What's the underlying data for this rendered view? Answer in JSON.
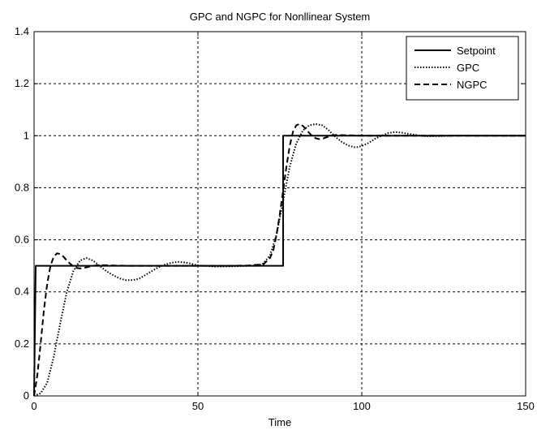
{
  "chart_data": {
    "type": "line",
    "title": "GPC and NGPC for Nonllinear System",
    "xlabel": "Time",
    "ylabel": "",
    "xlim": [
      0,
      150
    ],
    "ylim": [
      0,
      1.4
    ],
    "xticks": [
      0,
      50,
      100,
      150
    ],
    "yticks": [
      0,
      0.2,
      0.4,
      0.6,
      0.8,
      1,
      1.2,
      1.4
    ],
    "xtick_labels": [
      "0",
      "50",
      "100",
      "150"
    ],
    "ytick_labels": [
      "0",
      "0.2",
      "0.4",
      "0.6",
      "0.8",
      "1",
      "1.2",
      "1.4"
    ],
    "grid": true,
    "legend_position": "top-right",
    "series": [
      {
        "name": "Setpoint",
        "style": "solid",
        "color": "#000000",
        "x": [
          0,
          0.5,
          76,
          76,
          150
        ],
        "y": [
          0,
          0.5,
          0.5,
          1.0,
          1.0
        ]
      },
      {
        "name": "GPC",
        "style": "dotted",
        "color": "#000000",
        "x": [
          0,
          2,
          4,
          6,
          8,
          10,
          12,
          14,
          16,
          18,
          20,
          22,
          24,
          26,
          28,
          30,
          32,
          34,
          36,
          38,
          40,
          42,
          44,
          46,
          48,
          50,
          55,
          60,
          65,
          68,
          70,
          72,
          74,
          76,
          78,
          80,
          82,
          84,
          86,
          88,
          90,
          92,
          94,
          96,
          98,
          100,
          102,
          104,
          106,
          108,
          110,
          112,
          114,
          116,
          118,
          120,
          125,
          130,
          135,
          140,
          145,
          150
        ],
        "y": [
          0,
          0.01,
          0.05,
          0.15,
          0.28,
          0.4,
          0.48,
          0.52,
          0.53,
          0.52,
          0.5,
          0.48,
          0.465,
          0.452,
          0.445,
          0.445,
          0.45,
          0.465,
          0.48,
          0.495,
          0.505,
          0.512,
          0.515,
          0.513,
          0.508,
          0.502,
          0.497,
          0.498,
          0.5,
          0.5,
          0.51,
          0.54,
          0.62,
          0.75,
          0.88,
          0.97,
          1.02,
          1.04,
          1.045,
          1.04,
          1.02,
          0.995,
          0.975,
          0.962,
          0.955,
          0.96,
          0.972,
          0.988,
          1.0,
          1.01,
          1.014,
          1.012,
          1.008,
          1.004,
          1.0,
          0.998,
          0.999,
          1.001,
          1.0,
          1.0,
          1.0,
          1.0
        ]
      },
      {
        "name": "NGPC",
        "style": "dashed",
        "color": "#000000",
        "x": [
          0,
          1,
          2,
          3,
          4,
          5,
          6,
          7,
          8,
          9,
          10,
          11,
          12,
          13,
          14,
          16,
          18,
          20,
          25,
          30,
          40,
          50,
          60,
          65,
          70,
          72,
          73,
          74,
          75,
          76,
          77,
          78,
          79,
          80,
          81,
          82,
          83,
          84,
          85,
          86,
          87,
          88,
          89,
          90,
          92,
          95,
          100,
          110,
          120,
          130,
          140,
          150
        ],
        "y": [
          0,
          0.08,
          0.2,
          0.33,
          0.43,
          0.5,
          0.535,
          0.548,
          0.545,
          0.535,
          0.52,
          0.508,
          0.498,
          0.492,
          0.49,
          0.494,
          0.5,
          0.503,
          0.501,
          0.5,
          0.5,
          0.5,
          0.5,
          0.501,
          0.506,
          0.53,
          0.56,
          0.62,
          0.7,
          0.79,
          0.88,
          0.96,
          1.015,
          1.04,
          1.045,
          1.038,
          1.025,
          1.01,
          0.998,
          0.99,
          0.987,
          0.988,
          0.993,
          0.998,
          1.003,
          1.002,
          1.0,
          1.0,
          1.0,
          1.0,
          1.0,
          1.0
        ]
      }
    ]
  }
}
